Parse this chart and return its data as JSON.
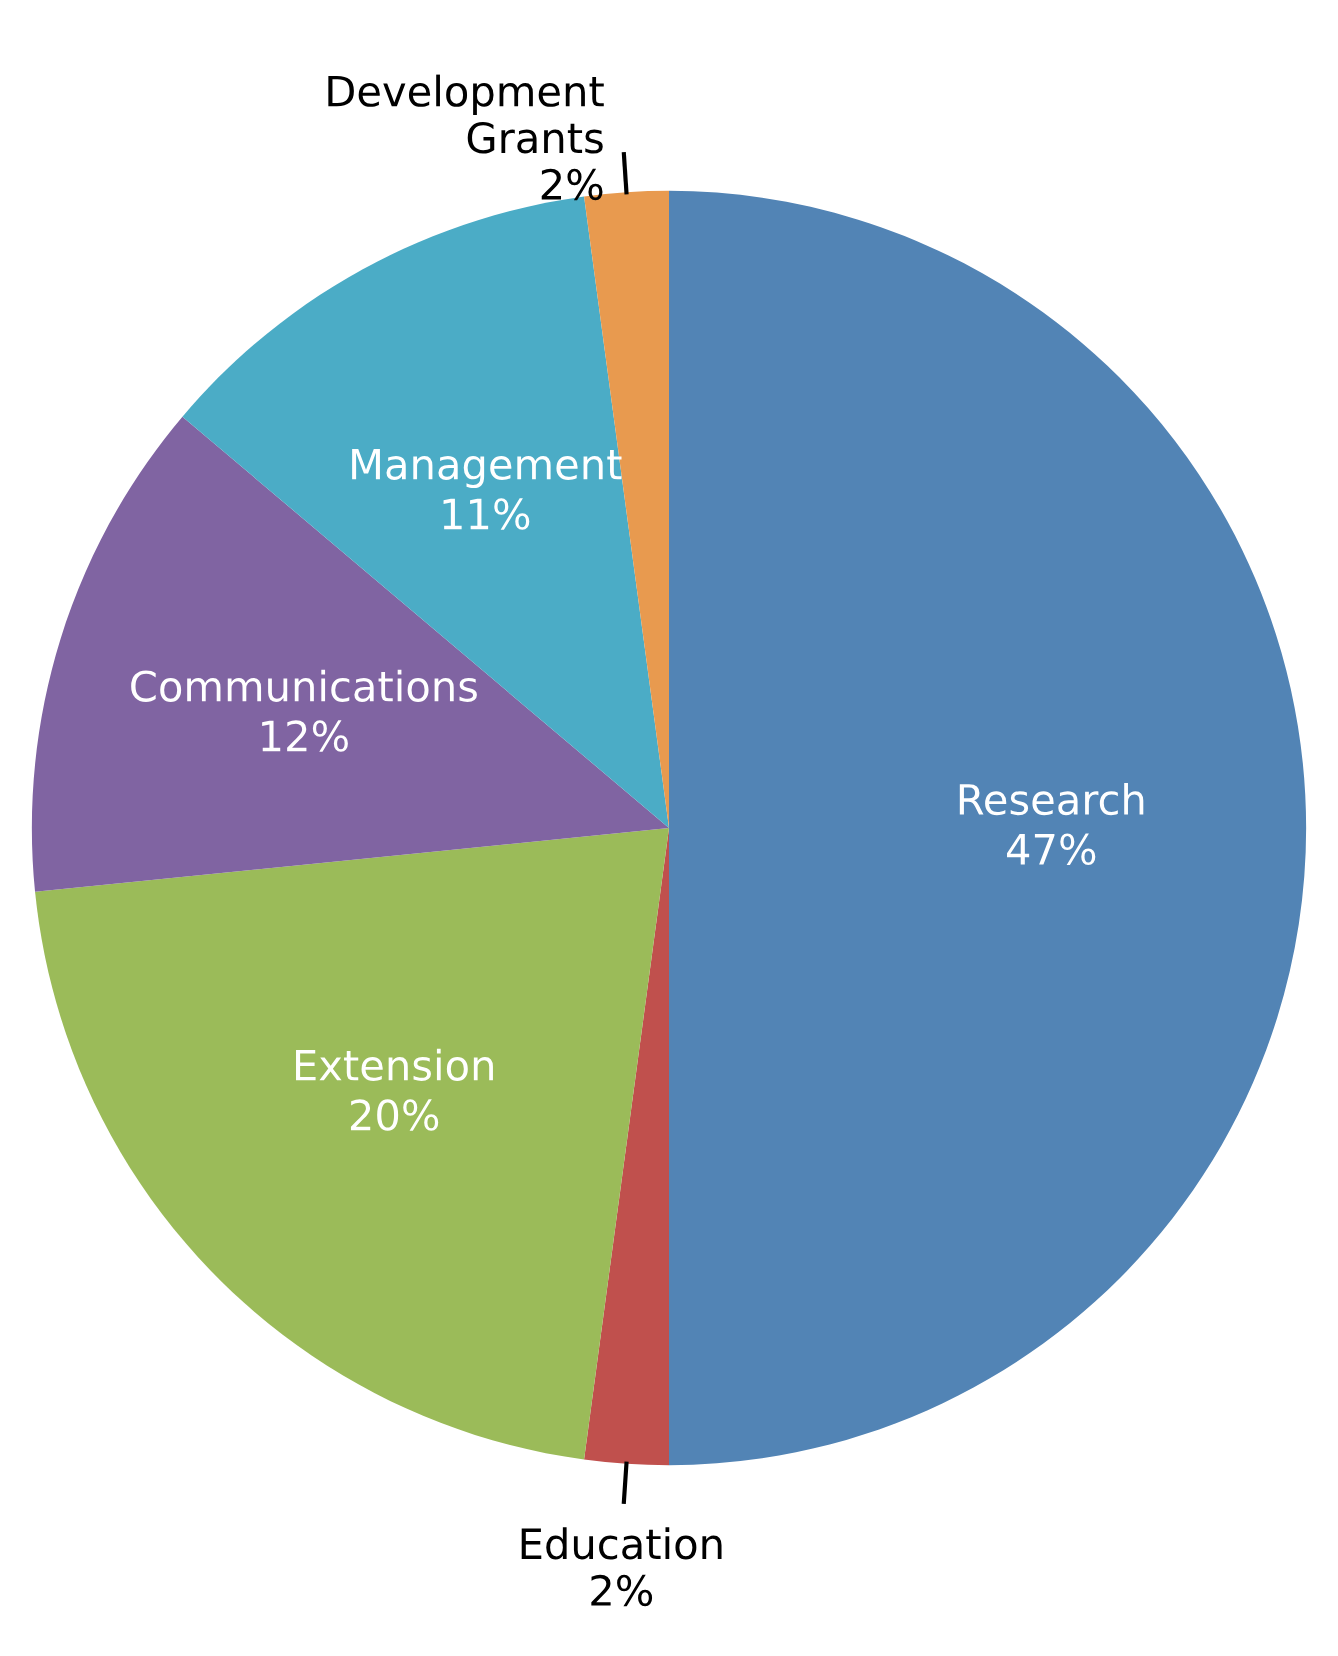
{
  "chart_data": {
    "type": "pie",
    "categories": [
      "Research",
      "Education",
      "Extension",
      "Communications",
      "Management",
      "Development Grants"
    ],
    "values": [
      47,
      2,
      20,
      12,
      11,
      2
    ],
    "value_labels": [
      "47%",
      "2%",
      "20%",
      "12%",
      "11%",
      "2%"
    ],
    "colors": [
      "#5284b5",
      "#c0504d",
      "#9bbb59",
      "#8064a2",
      "#4bacc6",
      "#e89a4f"
    ],
    "legend": false
  }
}
